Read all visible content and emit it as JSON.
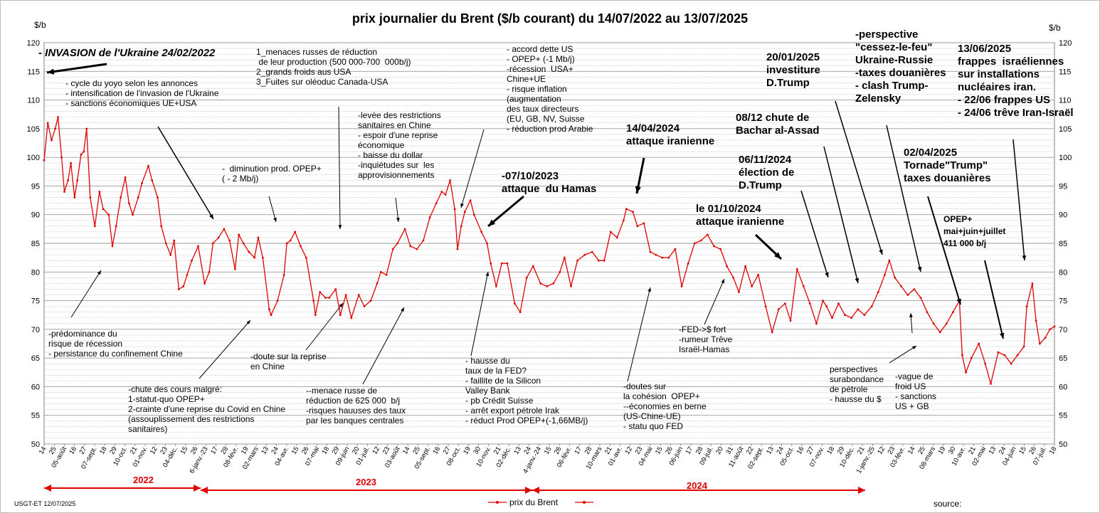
{
  "chart_data": {
    "type": "line",
    "title": "prix  journalier du  Brent ($/b courant) du 14/07/2022 au  13/07/2025",
    "ylabel_left": "$/b",
    "ylabel_right": "$/b",
    "ylim": [
      50,
      120
    ],
    "yticks": [
      50,
      55,
      60,
      65,
      70,
      75,
      80,
      85,
      90,
      95,
      100,
      105,
      110,
      115,
      120
    ],
    "grid": true,
    "legend_position": "bottom-center",
    "series": [
      {
        "name": "prix du Brent",
        "color": "#e00000",
        "points": [
          [
            "2022-07-14",
            99.5
          ],
          [
            "2022-07-18",
            106
          ],
          [
            "2022-07-22",
            103
          ],
          [
            "2022-07-26",
            105
          ],
          [
            "2022-07-29",
            107
          ],
          [
            "2022-08-02",
            100
          ],
          [
            "2022-08-05",
            94
          ],
          [
            "2022-08-09",
            96
          ],
          [
            "2022-08-12",
            99
          ],
          [
            "2022-08-16",
            93
          ],
          [
            "2022-08-19",
            96
          ],
          [
            "2022-08-23",
            100.5
          ],
          [
            "2022-08-26",
            101
          ],
          [
            "2022-08-29",
            105
          ],
          [
            "2022-09-02",
            93
          ],
          [
            "2022-09-07",
            88
          ],
          [
            "2022-09-12",
            94
          ],
          [
            "2022-09-16",
            91
          ],
          [
            "2022-09-22",
            90
          ],
          [
            "2022-09-26",
            84.5
          ],
          [
            "2022-09-30",
            88
          ],
          [
            "2022-10-05",
            93
          ],
          [
            "2022-10-10",
            96.5
          ],
          [
            "2022-10-14",
            92
          ],
          [
            "2022-10-18",
            90
          ],
          [
            "2022-10-24",
            93
          ],
          [
            "2022-10-28",
            95.5
          ],
          [
            "2022-11-04",
            98.5
          ],
          [
            "2022-11-08",
            96
          ],
          [
            "2022-11-14",
            93
          ],
          [
            "2022-11-18",
            88
          ],
          [
            "2022-11-23",
            85
          ],
          [
            "2022-11-28",
            83
          ],
          [
            "2022-12-02",
            85.5
          ],
          [
            "2022-12-07",
            77
          ],
          [
            "2022-12-12",
            77.5
          ],
          [
            "2022-12-16",
            79.5
          ],
          [
            "2022-12-21",
            82
          ],
          [
            "2022-12-28",
            84.5
          ],
          [
            "2023-01-04",
            78
          ],
          [
            "2023-01-09",
            80
          ],
          [
            "2023-01-13",
            85
          ],
          [
            "2023-01-19",
            86
          ],
          [
            "2023-01-25",
            87.5
          ],
          [
            "2023-01-31",
            85.5
          ],
          [
            "2023-02-06",
            80.5
          ],
          [
            "2023-02-10",
            86.5
          ],
          [
            "2023-02-15",
            85
          ],
          [
            "2023-02-21",
            83.5
          ],
          [
            "2023-02-27",
            82.5
          ],
          [
            "2023-03-03",
            86
          ],
          [
            "2023-03-08",
            82.5
          ],
          [
            "2023-03-15",
            73.5
          ],
          [
            "2023-03-17",
            72.5
          ],
          [
            "2023-03-24",
            75
          ],
          [
            "2023-03-31",
            79.5
          ],
          [
            "2023-04-03",
            85
          ],
          [
            "2023-04-07",
            85.5
          ],
          [
            "2023-04-12",
            87
          ],
          [
            "2023-04-18",
            84.5
          ],
          [
            "2023-04-24",
            82.5
          ],
          [
            "2023-05-02",
            75
          ],
          [
            "2023-05-04",
            72.5
          ],
          [
            "2023-05-09",
            76.5
          ],
          [
            "2023-05-15",
            75.5
          ],
          [
            "2023-05-19",
            75.5
          ],
          [
            "2023-05-26",
            77
          ],
          [
            "2023-05-31",
            72.5
          ],
          [
            "2023-06-06",
            76
          ],
          [
            "2023-06-12",
            72
          ],
          [
            "2023-06-20",
            76
          ],
          [
            "2023-06-26",
            74
          ],
          [
            "2023-07-03",
            75
          ],
          [
            "2023-07-10",
            78
          ],
          [
            "2023-07-14",
            80
          ],
          [
            "2023-07-20",
            79.5
          ],
          [
            "2023-07-27",
            84
          ],
          [
            "2023-08-01",
            85
          ],
          [
            "2023-08-09",
            87.5
          ],
          [
            "2023-08-15",
            84.5
          ],
          [
            "2023-08-22",
            84
          ],
          [
            "2023-08-29",
            85.5
          ],
          [
            "2023-09-05",
            89.5
          ],
          [
            "2023-09-12",
            92
          ],
          [
            "2023-09-18",
            94
          ],
          [
            "2023-09-22",
            93.5
          ],
          [
            "2023-09-27",
            96
          ],
          [
            "2023-10-02",
            91
          ],
          [
            "2023-10-05",
            84
          ],
          [
            "2023-10-09",
            88
          ],
          [
            "2023-10-13",
            90.5
          ],
          [
            "2023-10-19",
            92.5
          ],
          [
            "2023-10-23",
            90
          ],
          [
            "2023-10-31",
            87
          ],
          [
            "2023-11-06",
            85
          ],
          [
            "2023-11-10",
            81.5
          ],
          [
            "2023-11-16",
            77.5
          ],
          [
            "2023-11-22",
            81.5
          ],
          [
            "2023-11-28",
            81.5
          ],
          [
            "2023-12-06",
            74.5
          ],
          [
            "2023-12-12",
            73
          ],
          [
            "2023-12-19",
            79
          ],
          [
            "2023-12-26",
            81
          ],
          [
            "2024-01-03",
            78
          ],
          [
            "2024-01-10",
            77.5
          ],
          [
            "2024-01-17",
            78
          ],
          [
            "2024-01-24",
            80
          ],
          [
            "2024-01-29",
            82.5
          ],
          [
            "2024-02-05",
            77.5
          ],
          [
            "2024-02-12",
            82
          ],
          [
            "2024-02-20",
            83
          ],
          [
            "2024-02-28",
            83.5
          ],
          [
            "2024-03-06",
            82
          ],
          [
            "2024-03-12",
            82
          ],
          [
            "2024-03-19",
            87
          ],
          [
            "2024-03-26",
            86
          ],
          [
            "2024-04-02",
            89
          ],
          [
            "2024-04-05",
            91
          ],
          [
            "2024-04-12",
            90.5
          ],
          [
            "2024-04-17",
            88
          ],
          [
            "2024-04-24",
            88.5
          ],
          [
            "2024-05-01",
            83.5
          ],
          [
            "2024-05-07",
            83
          ],
          [
            "2024-05-14",
            82.5
          ],
          [
            "2024-05-21",
            82.5
          ],
          [
            "2024-05-28",
            84
          ],
          [
            "2024-06-04",
            77.5
          ],
          [
            "2024-06-11",
            81.5
          ],
          [
            "2024-06-18",
            85
          ],
          [
            "2024-06-25",
            85.5
          ],
          [
            "2024-07-02",
            86.5
          ],
          [
            "2024-07-09",
            84.5
          ],
          [
            "2024-07-16",
            84
          ],
          [
            "2024-07-23",
            81
          ],
          [
            "2024-07-30",
            79
          ],
          [
            "2024-08-05",
            76.5
          ],
          [
            "2024-08-12",
            81
          ],
          [
            "2024-08-19",
            77.5
          ],
          [
            "2024-08-26",
            79.5
          ],
          [
            "2024-09-03",
            74
          ],
          [
            "2024-09-10",
            69.5
          ],
          [
            "2024-09-17",
            73.5
          ],
          [
            "2024-09-24",
            74.5
          ],
          [
            "2024-09-30",
            71.5
          ],
          [
            "2024-10-07",
            80.5
          ],
          [
            "2024-10-14",
            77.5
          ],
          [
            "2024-10-21",
            74.5
          ],
          [
            "2024-10-28",
            71
          ],
          [
            "2024-11-04",
            75
          ],
          [
            "2024-11-08",
            74
          ],
          [
            "2024-11-14",
            72
          ],
          [
            "2024-11-21",
            74.5
          ],
          [
            "2024-11-28",
            72.5
          ],
          [
            "2024-12-05",
            72
          ],
          [
            "2024-12-12",
            73.5
          ],
          [
            "2024-12-19",
            72.5
          ],
          [
            "2024-12-27",
            74
          ],
          [
            "2025-01-03",
            76.5
          ],
          [
            "2025-01-10",
            79.5
          ],
          [
            "2025-01-15",
            82
          ],
          [
            "2025-01-21",
            79
          ],
          [
            "2025-01-28",
            77.5
          ],
          [
            "2025-02-04",
            76
          ],
          [
            "2025-02-11",
            77
          ],
          [
            "2025-02-18",
            75.5
          ],
          [
            "2025-02-25",
            73
          ],
          [
            "2025-03-04",
            71
          ],
          [
            "2025-03-11",
            69.5
          ],
          [
            "2025-03-18",
            71
          ],
          [
            "2025-03-25",
            73
          ],
          [
            "2025-04-01",
            75
          ],
          [
            "2025-04-04",
            65.5
          ],
          [
            "2025-04-08",
            62.5
          ],
          [
            "2025-04-14",
            65
          ],
          [
            "2025-04-22",
            67.5
          ],
          [
            "2025-04-29",
            64
          ],
          [
            "2025-05-05",
            60.5
          ],
          [
            "2025-05-13",
            66
          ],
          [
            "2025-05-20",
            65.5
          ],
          [
            "2025-05-27",
            64
          ],
          [
            "2025-06-03",
            65.5
          ],
          [
            "2025-06-10",
            67
          ],
          [
            "2025-06-13",
            74
          ],
          [
            "2025-06-19",
            78
          ],
          [
            "2025-06-23",
            71.5
          ],
          [
            "2025-06-27",
            67.5
          ],
          [
            "2025-07-03",
            68.5
          ],
          [
            "2025-07-08",
            70
          ],
          [
            "2025-07-13",
            70.5
          ]
        ]
      }
    ],
    "x_tick_labels": [
      "14",
      "25",
      "05-août",
      "16",
      "27",
      "07-sept.",
      "18",
      "29",
      "10-oct.",
      "21",
      "01-nov.",
      "12",
      "23",
      "04-déc.",
      "15",
      "26",
      "6-janv.-23",
      "17",
      "28",
      "08-févr.",
      "19",
      "02-mars",
      "13",
      "24",
      "04-avr.",
      "15",
      "26",
      "07-mai",
      "18",
      "29",
      "09-juin",
      "20",
      "01-juil.",
      "12",
      "23",
      "03-août",
      "14",
      "25",
      "05-sept.",
      "16",
      "27",
      "08-oct.",
      "19",
      "30",
      "10-nov.",
      "21",
      "02-déc.",
      "13",
      "24",
      "4-janv.-24",
      "15",
      "26",
      "06-févr.",
      "17",
      "28",
      "10-mars",
      "21",
      "01-avr.",
      "12",
      "23",
      "04-mai",
      "15",
      "26",
      "06-juin",
      "17",
      "28",
      "09-juil.",
      "20",
      "31",
      "11-août",
      "22",
      "02-sept.",
      "13",
      "24",
      "05-oct.",
      "16",
      "27",
      "07-nov.",
      "18",
      "29",
      "10-déc.",
      "21",
      "1-janv.-25",
      "12",
      "23",
      "03-févr.",
      "14",
      "25",
      "08-mars",
      "19",
      "30",
      "10-avr.",
      "21",
      "02-mai",
      "13",
      "24",
      "04-juin",
      "15",
      "26",
      "07-juil.",
      "18"
    ],
    "year_labels": [
      "2022",
      "2023",
      "2024"
    ]
  },
  "annotations": {
    "invasion": "- INVASION de l'Ukraine 24/02/2022",
    "yoyo": "- cycle du yoyo selon les annonces\n- intensification de l'invasion de l'Ukraine\n- sanctions économiques UE+USA",
    "menaces": "1_menaces russes de réduction\n de leur production (500 000-700  000b/j)\n2_grands froids aus USA\n3_Fuites sur oléoduc Canada-USA",
    "accord": "- accord dette US\n- OPEP+ (-1 Mb/j)\n-récession  USA+\nChine+UE\n- risque inflation\n(augmentation\ndes taux directeurs\n(EU, GB, NV, Suisse\n- réduction prod Arabie",
    "levee": "-levée des restrictions\nsanitaires en Chine\n- espoir d'une reprise\néconomique\n- baisse du dollar\n-inquiétudes sur  les\napprovisionnements",
    "diminution": "-  diminution prod. OPEP+\n( - 2 Mb/j)",
    "hamas": "-07/10/2023\nattaque  du Hamas",
    "iran_avril": "14/04/2024\nattaque iranienne",
    "iran_oct": "le 01/10/2024\nattaque iranienne",
    "election": "06/11/2024\nélection de\nD.Trump",
    "assad": "08/12 chute de\nBachar al-Assad",
    "investiture": "20/01/2025\ninvestiture\nD.Trump",
    "perspective": "-perspective\n\"cessez-le-feu\"\nUkraine-Russie\n-taxes douanières\n- clash Trump-\nZelensky",
    "frappes": "13/06/2025\nfrappes  israéliennes\nsur installations\nnucléaires iran.\n- 22/06 frappes US\n- 24/06 trêve Iran-Israël",
    "tornade": "02/04/2025\nTornade\"Trump\"\ntaxes douanières",
    "opep_2025": "OPEP+\nmai+juin+juillet\n411 000 b/j",
    "recession": "-prédominance du\nrisque de récession\n- persistance du confinement Chine",
    "chute": "-chute des cours malgré:\n1-statut-quo OPEP+\n2-crainte d'une reprise du Covid en Chine\n(assouplissement des restrictions\nsanitaires)",
    "doute": "-doute sur la reprise\nen Chine",
    "menace_russe": "--menace russe de\nréduction de 625 000  b/j\n-risques hauuses des taux\npar les banques centrales",
    "fed": "- hausse du\ntaux de la FED?\n- faillite de la Silicon\nValley Bank\n- pb Crédit Suisse\n- arrêt export pétrole Irak\n- réduct Prod OPEP+(-1,66MB/j)",
    "cohesion": "-doutes sur\nla cohésion  OPEP+\n--économies en berne\n(US-Chine-UE)\n- statu quo FED",
    "fed_dollar": "-FED->$ fort\n-rumeur Trêve\nIsraël-Hamas",
    "surabondance": "perspectives\nsurabondance\nde pétrole\n- hausse du $",
    "froid": "-vague de\nfroid US\n- sanctions\nUS + GB"
  },
  "legend": {
    "label": "prix du Brent"
  },
  "footer": {
    "left": "USGT-ET  12/07/2025",
    "source": "source:"
  }
}
